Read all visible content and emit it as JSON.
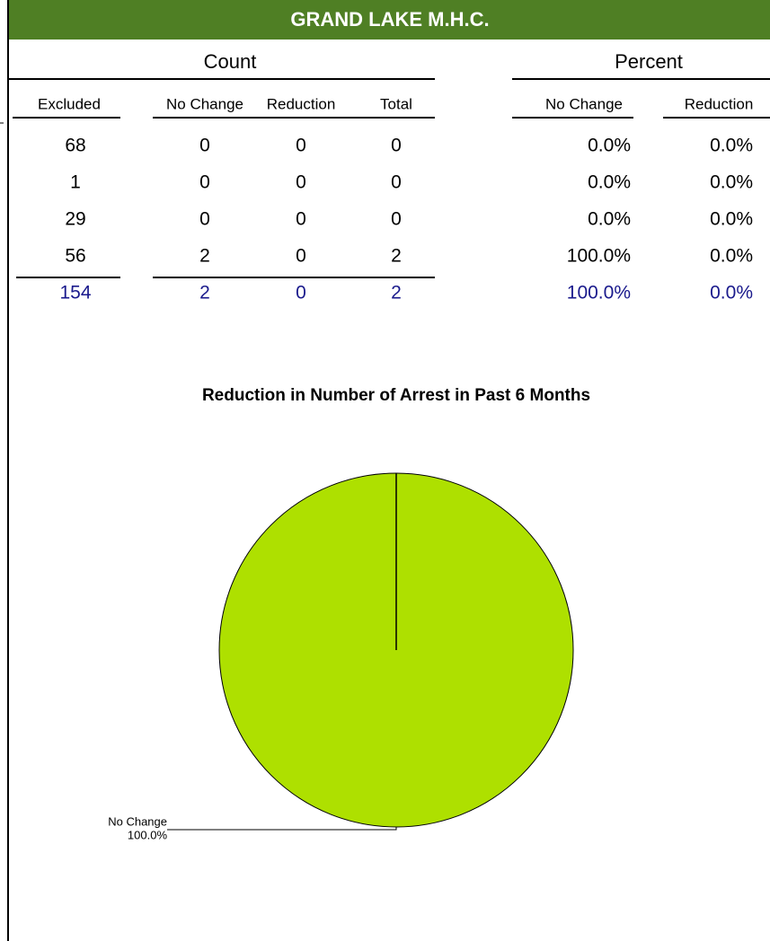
{
  "header": {
    "title": "GRAND LAKE M.H.C."
  },
  "table": {
    "groups": [
      "Count",
      "Percent"
    ],
    "columns": [
      "Excluded",
      "No Change",
      "Reduction",
      "Total",
      "No Change",
      "Reduction"
    ],
    "rows": [
      [
        "68",
        "0",
        "0",
        "0",
        "0.0%",
        "0.0%"
      ],
      [
        "1",
        "0",
        "0",
        "0",
        "0.0%",
        "0.0%"
      ],
      [
        "29",
        "0",
        "0",
        "0",
        "0.0%",
        "0.0%"
      ],
      [
        "56",
        "2",
        "0",
        "2",
        "100.0%",
        "0.0%"
      ]
    ],
    "totals": [
      "154",
      "2",
      "0",
      "2",
      "100.0%",
      "0.0%"
    ]
  },
  "chart_data": {
    "type": "pie",
    "title": "Reduction in Number of Arrest in Past 6 Months",
    "categories": [
      "No Change"
    ],
    "values": [
      100
    ],
    "value_labels": [
      "100.0%"
    ],
    "colors": [
      "#aee000"
    ]
  }
}
